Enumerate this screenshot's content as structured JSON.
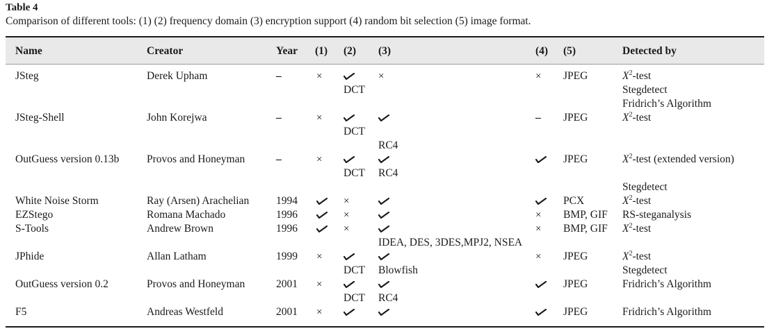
{
  "title": "Table 4",
  "caption": "Comparison of different tools: (1) (2) frequency domain (3) encryption support (4) random bit selection (5) image format.",
  "columns": [
    "Name",
    "Creator",
    "Year",
    "(1)",
    "(2)",
    "(3)",
    "(4)",
    "(5)",
    "Detected by"
  ],
  "symbols": {
    "cross": "×",
    "dash": "–",
    "check": "check-icon"
  },
  "rows": [
    {
      "name": "JSteg",
      "creator": "Derek Upham",
      "year": "–",
      "c1": "cross",
      "c2": [
        "check",
        "DCT"
      ],
      "c3": [
        "cross"
      ],
      "c4": "cross",
      "c5": "JPEG",
      "detected": [
        {
          "pre": "X",
          "sup": "2",
          "post": "-test"
        },
        {
          "pre": "Stegdetect"
        },
        {
          "pre": "Fridrich’s Algorithm"
        }
      ]
    },
    {
      "name": "JSteg-Shell",
      "creator": "John Korejwa",
      "year": "–",
      "c1": "cross",
      "c2": [
        "check",
        "DCT"
      ],
      "c3": [
        "check",
        "",
        "RC4"
      ],
      "c4": "dash",
      "c5": "JPEG",
      "detected": [
        {
          "pre": "X",
          "sup": "2",
          "post": "-test"
        }
      ]
    },
    {
      "name": "OutGuess version 0.13b",
      "creator": "Provos and Honeyman",
      "year": "–",
      "c1": "cross",
      "c2": [
        "check",
        "DCT"
      ],
      "c3": [
        "check",
        "RC4"
      ],
      "c4": "check",
      "c5": "JPEG",
      "detected": [
        {
          "pre": "X",
          "sup": "2",
          "post": "-test (extended version)"
        },
        {
          "pre": ""
        },
        {
          "pre": "Stegdetect"
        }
      ]
    },
    {
      "name": "White Noise Storm",
      "creator": "Ray (Arsen) Arachelian",
      "year": "1994",
      "c1": "check",
      "c2": [
        "cross"
      ],
      "c3": [
        "check"
      ],
      "c4": "check",
      "c5": "PCX",
      "detected": [
        {
          "pre": "X",
          "sup": "2",
          "post": "-test"
        }
      ]
    },
    {
      "name": "EZStego",
      "creator": "Romana Machado",
      "year": "1996",
      "c1": "check",
      "c2": [
        "cross"
      ],
      "c3": [
        "check"
      ],
      "c4": "cross",
      "c5": "BMP, GIF",
      "detected": [
        {
          "pre": "RS-steganalysis"
        }
      ]
    },
    {
      "name": "S-Tools",
      "creator": "Andrew Brown",
      "year": "1996",
      "c1": "check",
      "c2": [
        "cross"
      ],
      "c3": [
        "check",
        "IDEA, DES, 3DES,MPJ2, NSEA"
      ],
      "c4": "cross",
      "c5": "BMP, GIF",
      "detected": [
        {
          "pre": "X",
          "sup": "2",
          "post": "-test"
        }
      ]
    },
    {
      "name": "JPhide",
      "creator": "Allan Latham",
      "year": "1999",
      "c1": "cross",
      "c2": [
        "check",
        "DCT"
      ],
      "c3": [
        "check",
        "Blowfish"
      ],
      "c4": "cross",
      "c5": "JPEG",
      "detected": [
        {
          "pre": "X",
          "sup": "2",
          "post": "-test"
        },
        {
          "pre": "Stegdetect"
        }
      ]
    },
    {
      "name": "OutGuess version 0.2",
      "creator": "Provos and Honeyman",
      "year": "2001",
      "c1": "cross",
      "c2": [
        "check",
        "DCT"
      ],
      "c3": [
        "check",
        "RC4"
      ],
      "c4": "check",
      "c5": "JPEG",
      "detected": [
        {
          "pre": "Fridrich’s Algorithm"
        }
      ]
    },
    {
      "name": "F5",
      "creator": "Andreas Westfeld",
      "year": "2001",
      "c1": "cross",
      "c2": [
        "check"
      ],
      "c3": [
        "check"
      ],
      "c4": "check",
      "c5": "JPEG",
      "detected": [
        {
          "pre": "Fridrich’s Algorithm"
        }
      ]
    }
  ]
}
